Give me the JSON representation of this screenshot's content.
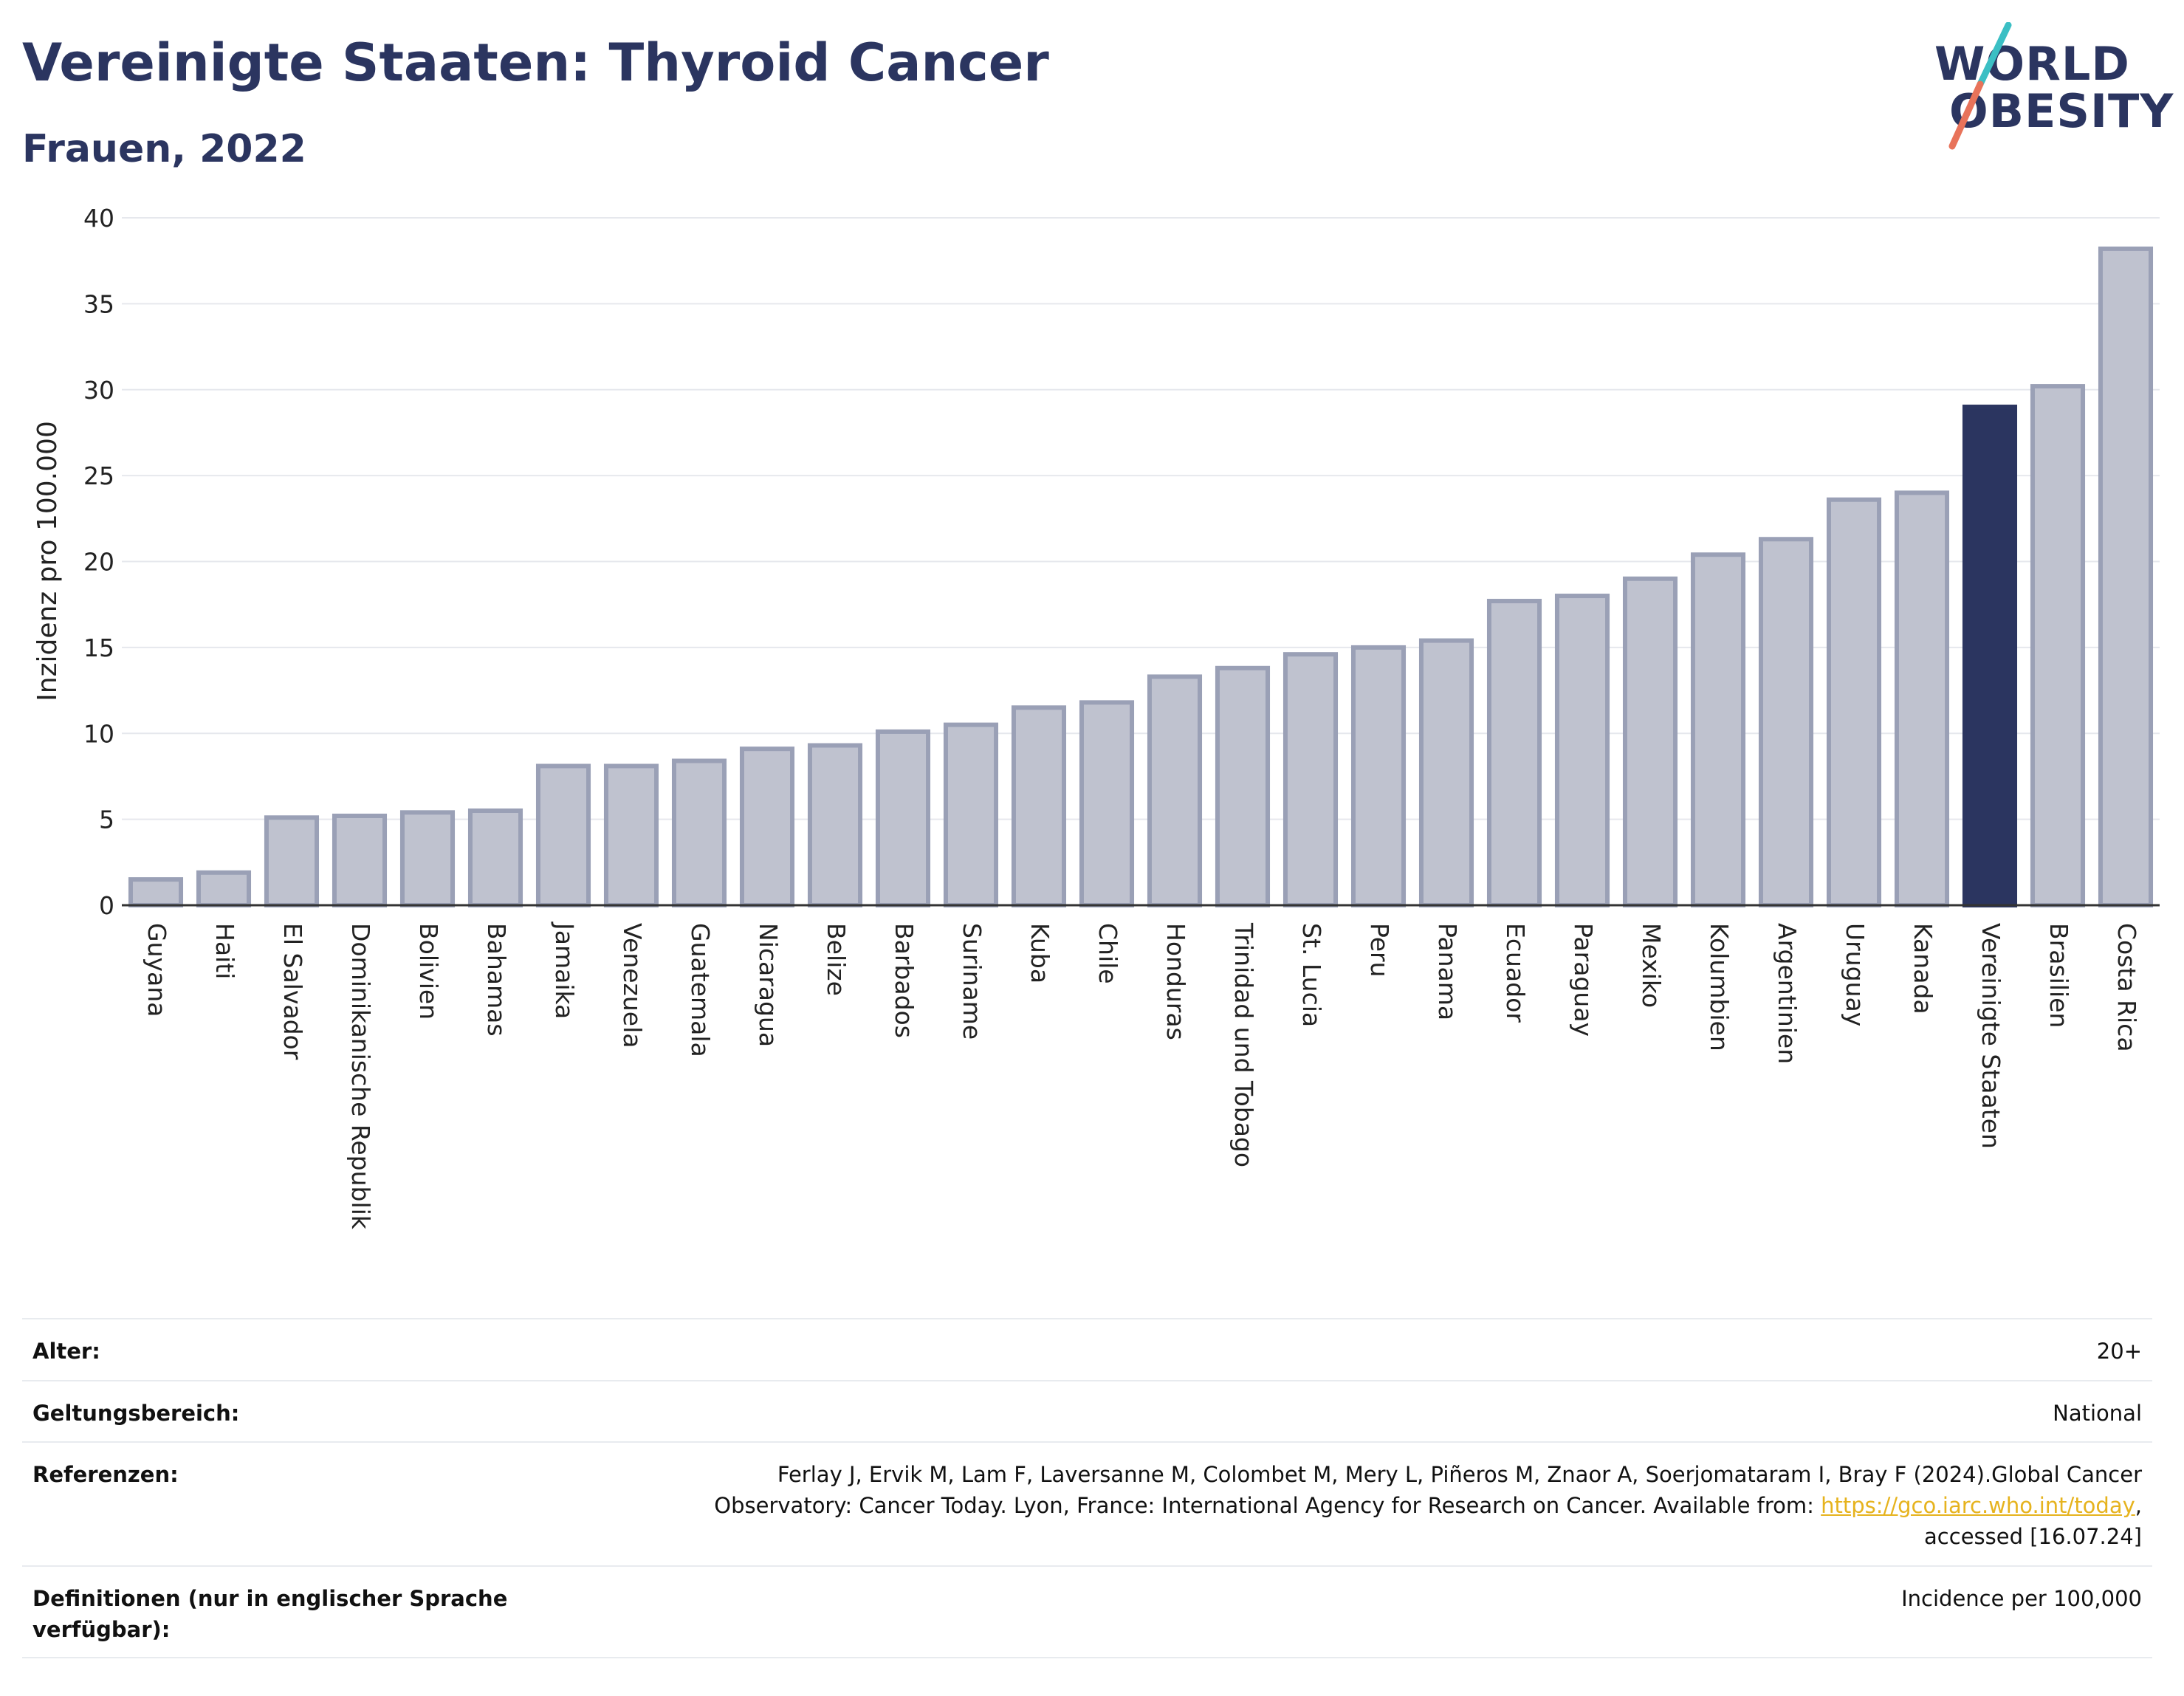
{
  "header": {
    "title": "Vereinigte Staaten: Thyroid Cancer",
    "subtitle": "Frauen, 2022"
  },
  "logo": {
    "line1": "WORLD",
    "line2": "OBESITY",
    "colors": {
      "text": "#2b3560",
      "slash_top": "#3bbfc4",
      "slash_bottom": "#e8735a"
    }
  },
  "chart_data": {
    "type": "bar",
    "ylabel": "Inzidenz pro 100.000",
    "xlabel": "",
    "ylim": [
      0,
      40
    ],
    "yticks": [
      0,
      5,
      10,
      15,
      20,
      25,
      30,
      35,
      40
    ],
    "grid": true,
    "highlight": "Vereinigte Staaten",
    "colors": {
      "bar": "#bfc2cf",
      "bar_border": "#9aa0b6",
      "highlight": "#2b3560",
      "grid": "#e6e8ed",
      "axis": "#333333"
    },
    "categories": [
      "Guyana",
      "Haiti",
      "El Salvador",
      "Dominikanische Republik",
      "Bolivien",
      "Bahamas",
      "Jamaika",
      "Venezuela",
      "Guatemala",
      "Nicaragua",
      "Belize",
      "Barbados",
      "Suriname",
      "Kuba",
      "Chile",
      "Honduras",
      "Trinidad und Tobago",
      "St. Lucia",
      "Peru",
      "Panama",
      "Ecuador",
      "Paraguay",
      "Mexiko",
      "Kolumbien",
      "Argentinien",
      "Uruguay",
      "Kanada",
      "Vereinigte Staaten",
      "Brasilien",
      "Costa Rica"
    ],
    "values": [
      1.5,
      1.9,
      5.1,
      5.2,
      5.4,
      5.5,
      8.1,
      8.1,
      8.4,
      9.1,
      9.3,
      10.1,
      10.5,
      11.5,
      11.8,
      13.3,
      13.8,
      14.6,
      15.0,
      15.4,
      17.7,
      18.0,
      19.0,
      20.4,
      21.3,
      23.6,
      24.0,
      29.0,
      30.2,
      38.2
    ]
  },
  "meta": {
    "alter_label": "Alter:",
    "alter_value": "20+",
    "scope_label": "Geltungsbereich:",
    "scope_value": "National",
    "ref_label": "Referenzen:",
    "ref_text_line1": "Ferlay J, Ervik M, Lam F, Laversanne M, Colombet M, Mery L, Piñeros M, Znaor A, Soerjomataram I, Bray F (2024).Global Cancer",
    "ref_text_line2_pre": "Observatory: Cancer Today. Lyon, France: International Agency for Research on Cancer. Available from: ",
    "ref_link": "https://gco.iarc.who.int/today",
    "ref_text_line2_post": ",",
    "ref_text_line3": "accessed [16.07.24]",
    "def_label": "Definitionen (nur in englischer Sprache verfügbar):",
    "def_value": "Incidence per 100,000"
  }
}
